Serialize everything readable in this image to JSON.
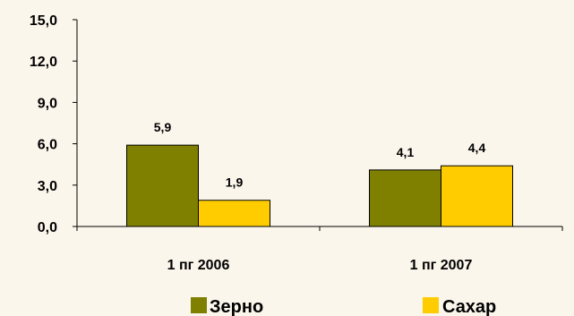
{
  "chart_data": {
    "type": "bar",
    "categories": [
      "1 пг 2006",
      "1 пг 2007"
    ],
    "series": [
      {
        "name": "Зерно",
        "values": [
          5.9,
          4.1
        ],
        "labels": [
          "5,9",
          "4,1"
        ],
        "color": "#808000"
      },
      {
        "name": "Сахар",
        "values": [
          1.9,
          4.4
        ],
        "labels": [
          "1,9",
          "4,4"
        ],
        "color": "#ffcc00"
      }
    ],
    "y_ticks": [
      0.0,
      3.0,
      6.0,
      9.0,
      12.0,
      15.0
    ],
    "y_tick_labels": [
      "0,0",
      "3,0",
      "6,0",
      "9,0",
      "12,0",
      "15,0"
    ],
    "ylim": [
      0,
      15
    ],
    "grid": false,
    "legend_position": "bottom",
    "title": "",
    "xlabel": "",
    "ylabel": ""
  }
}
